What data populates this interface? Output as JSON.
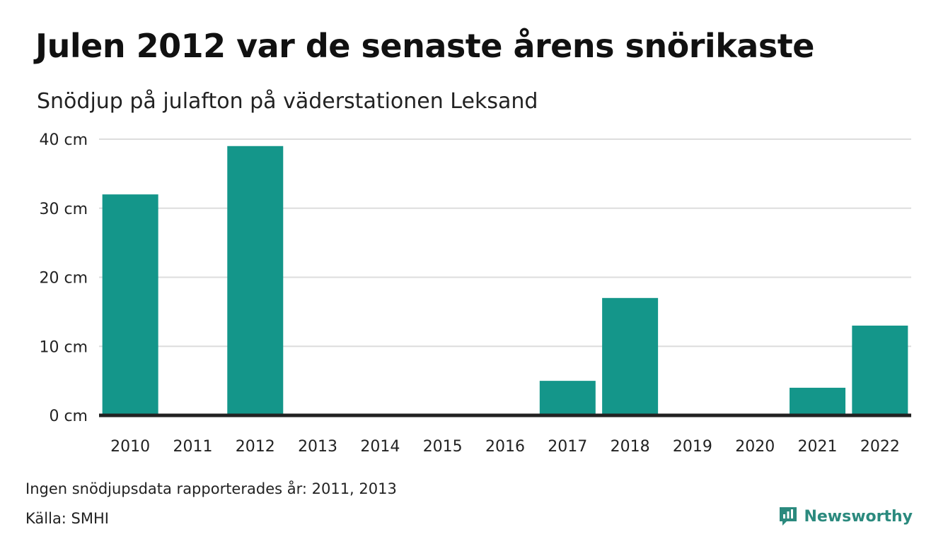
{
  "title": "Julen 2012 var de senaste årens snörikaste",
  "subtitle": "Snödjup på julafton på väderstationen Leksand",
  "note": "Ingen snödjupsdata rapporterades år: 2011, 2013",
  "source": "Källa: SMHI",
  "brand": {
    "name": "Newsworthy",
    "icon": "newsworthy-logo-icon",
    "color": "#2b8a7e"
  },
  "colors": {
    "bar": "#14968a",
    "grid": "#dddddd",
    "baseline": "#222222"
  },
  "chart_data": {
    "type": "bar",
    "categories": [
      "2010",
      "2011",
      "2012",
      "2013",
      "2014",
      "2015",
      "2016",
      "2017",
      "2018",
      "2019",
      "2020",
      "2021",
      "2022"
    ],
    "values": [
      32,
      null,
      39,
      null,
      0,
      0,
      0,
      5,
      17,
      0,
      0,
      4,
      13
    ],
    "ylim": [
      0,
      40
    ],
    "yticks": [
      0,
      10,
      20,
      30,
      40
    ],
    "ytick_labels": [
      "0 cm",
      "10 cm",
      "20 cm",
      "30 cm",
      "40 cm"
    ],
    "grid": true,
    "legend": "none"
  }
}
